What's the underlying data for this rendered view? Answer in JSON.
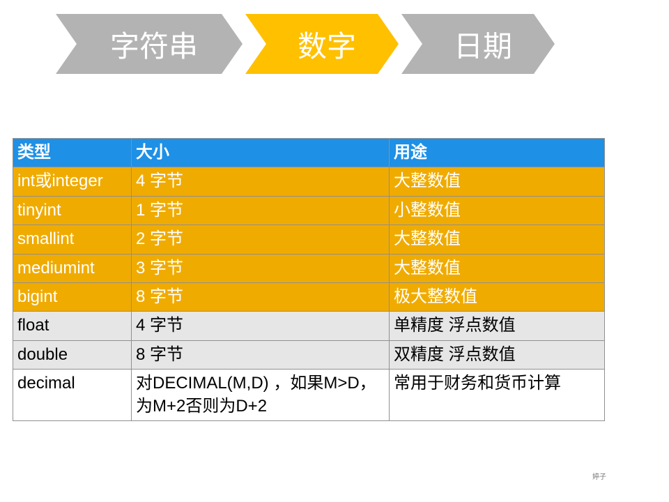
{
  "nav": {
    "items": [
      {
        "label": "字符串",
        "active": false
      },
      {
        "label": "数字",
        "active": true
      },
      {
        "label": "日期",
        "active": false
      }
    ],
    "colors": {
      "inactive_fill": "#b3b3b3",
      "active_fill": "#ffc000",
      "text": "#ffffff"
    },
    "chevron_widths": [
      268,
      220,
      220
    ]
  },
  "table": {
    "header_bg": "#1e90e6",
    "header_fg": "#ffffff",
    "columns": [
      "类型",
      "大小",
      "用途"
    ],
    "rows": [
      {
        "cells": [
          "int或integer",
          "4 字节",
          "大整数值"
        ],
        "bg": "#f0ab00",
        "fg": "#ffffff"
      },
      {
        "cells": [
          "tinyint",
          "1 字节",
          "小整数值"
        ],
        "bg": "#f0ab00",
        "fg": "#ffffff"
      },
      {
        "cells": [
          "smallint",
          "2 字节",
          "大整数值"
        ],
        "bg": "#f0ab00",
        "fg": "#ffffff"
      },
      {
        "cells": [
          "mediumint",
          "3 字节",
          "大整数值"
        ],
        "bg": "#f0ab00",
        "fg": "#ffffff"
      },
      {
        "cells": [
          "bigint",
          "8 字节",
          "极大整数值"
        ],
        "bg": "#f0ab00",
        "fg": "#ffffff"
      },
      {
        "cells": [
          "float",
          "4 字节",
          "单精度 浮点数值"
        ],
        "bg": "#e6e6e6",
        "fg": "#000000"
      },
      {
        "cells": [
          "double",
          "8 字节",
          "双精度 浮点数值"
        ],
        "bg": "#e6e6e6",
        "fg": "#000000"
      },
      {
        "cells": [
          "decimal",
          "对DECIMAL(M,D) ，如果M>D，为M+2否则为D+2",
          "常用于财务和货币计算"
        ],
        "bg": "#ffffff",
        "fg": "#000000"
      }
    ]
  },
  "footer": "婷子"
}
